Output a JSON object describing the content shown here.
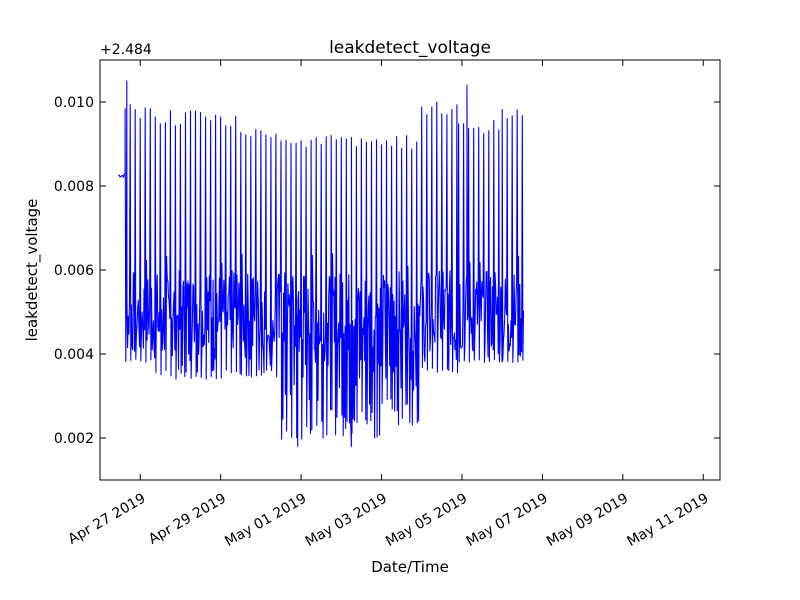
{
  "chart_data": {
    "type": "line",
    "title": "leakdetect_voltage",
    "xlabel": "Date/Time",
    "ylabel": "leakdetect_voltage",
    "y_offset_label": "+2.484",
    "y_offset": 2.484,
    "xlim": [
      "2019-04-26",
      "2019-05-11T10:00"
    ],
    "ylim": [
      0.001,
      0.011
    ],
    "x_ticks": [
      {
        "value": "2019-04-27",
        "label": "Apr 27 2019"
      },
      {
        "value": "2019-04-29",
        "label": "Apr 29 2019"
      },
      {
        "value": "2019-05-01",
        "label": "May 01 2019"
      },
      {
        "value": "2019-05-03",
        "label": "May 03 2019"
      },
      {
        "value": "2019-05-05",
        "label": "May 05 2019"
      },
      {
        "value": "2019-05-07",
        "label": "May 07 2019"
      },
      {
        "value": "2019-05-09",
        "label": "May 09 2019"
      },
      {
        "value": "2019-05-11",
        "label": "May 11 2019"
      }
    ],
    "y_ticks": [
      {
        "value": 0.002,
        "label": "0.002"
      },
      {
        "value": 0.004,
        "label": "0.004"
      },
      {
        "value": 0.006,
        "label": "0.006"
      },
      {
        "value": 0.008,
        "label": "0.008"
      },
      {
        "value": 0.01,
        "label": "0.010"
      }
    ],
    "grid": false,
    "legend": "none",
    "series": [
      {
        "color": "#0000ff",
        "cycle_hours": 3,
        "segments": [
          {
            "start": "2019-04-26T11:00",
            "end": "2019-04-26T15:00",
            "low": 0.0082,
            "high": 0.0083
          },
          {
            "start": "2019-04-26T15:00",
            "end": "2019-04-27T09:00",
            "low": 0.0038,
            "high": 0.01
          },
          {
            "start": "2019-04-27T09:00",
            "end": "2019-04-29T12:00",
            "low": 0.0034,
            "high": 0.0098
          },
          {
            "start": "2019-04-29T12:00",
            "end": "2019-04-30T12:00",
            "low": 0.0034,
            "high": 0.0094
          },
          {
            "start": "2019-04-30T12:00",
            "end": "2019-05-01T12:00",
            "low": 0.0019,
            "high": 0.0092
          },
          {
            "start": "2019-05-01T12:00",
            "end": "2019-05-03T00:00",
            "low": 0.002,
            "high": 0.0092
          },
          {
            "start": "2019-05-03T00:00",
            "end": "2019-05-04T00:00",
            "low": 0.0023,
            "high": 0.0092
          },
          {
            "start": "2019-05-04T00:00",
            "end": "2019-05-04T22:00",
            "low": 0.0035,
            "high": 0.01
          },
          {
            "start": "2019-05-04T22:00",
            "end": "2019-05-06T00:00",
            "low": 0.0038,
            "high": 0.0096
          },
          {
            "start": "2019-05-06T00:00",
            "end": "2019-05-06T13:00",
            "low": 0.0038,
            "high": 0.0099
          }
        ],
        "baseline": {
          "low": 0.004,
          "high": 0.006
        },
        "extremes": [
          {
            "x": "2019-04-26T16:00",
            "y": 0.0105
          },
          {
            "x": "2019-04-30T22:00",
            "y": 0.0018
          },
          {
            "x": "2019-05-02T06:00",
            "y": 0.0018
          },
          {
            "x": "2019-05-05T03:00",
            "y": 0.0104
          }
        ]
      }
    ]
  }
}
